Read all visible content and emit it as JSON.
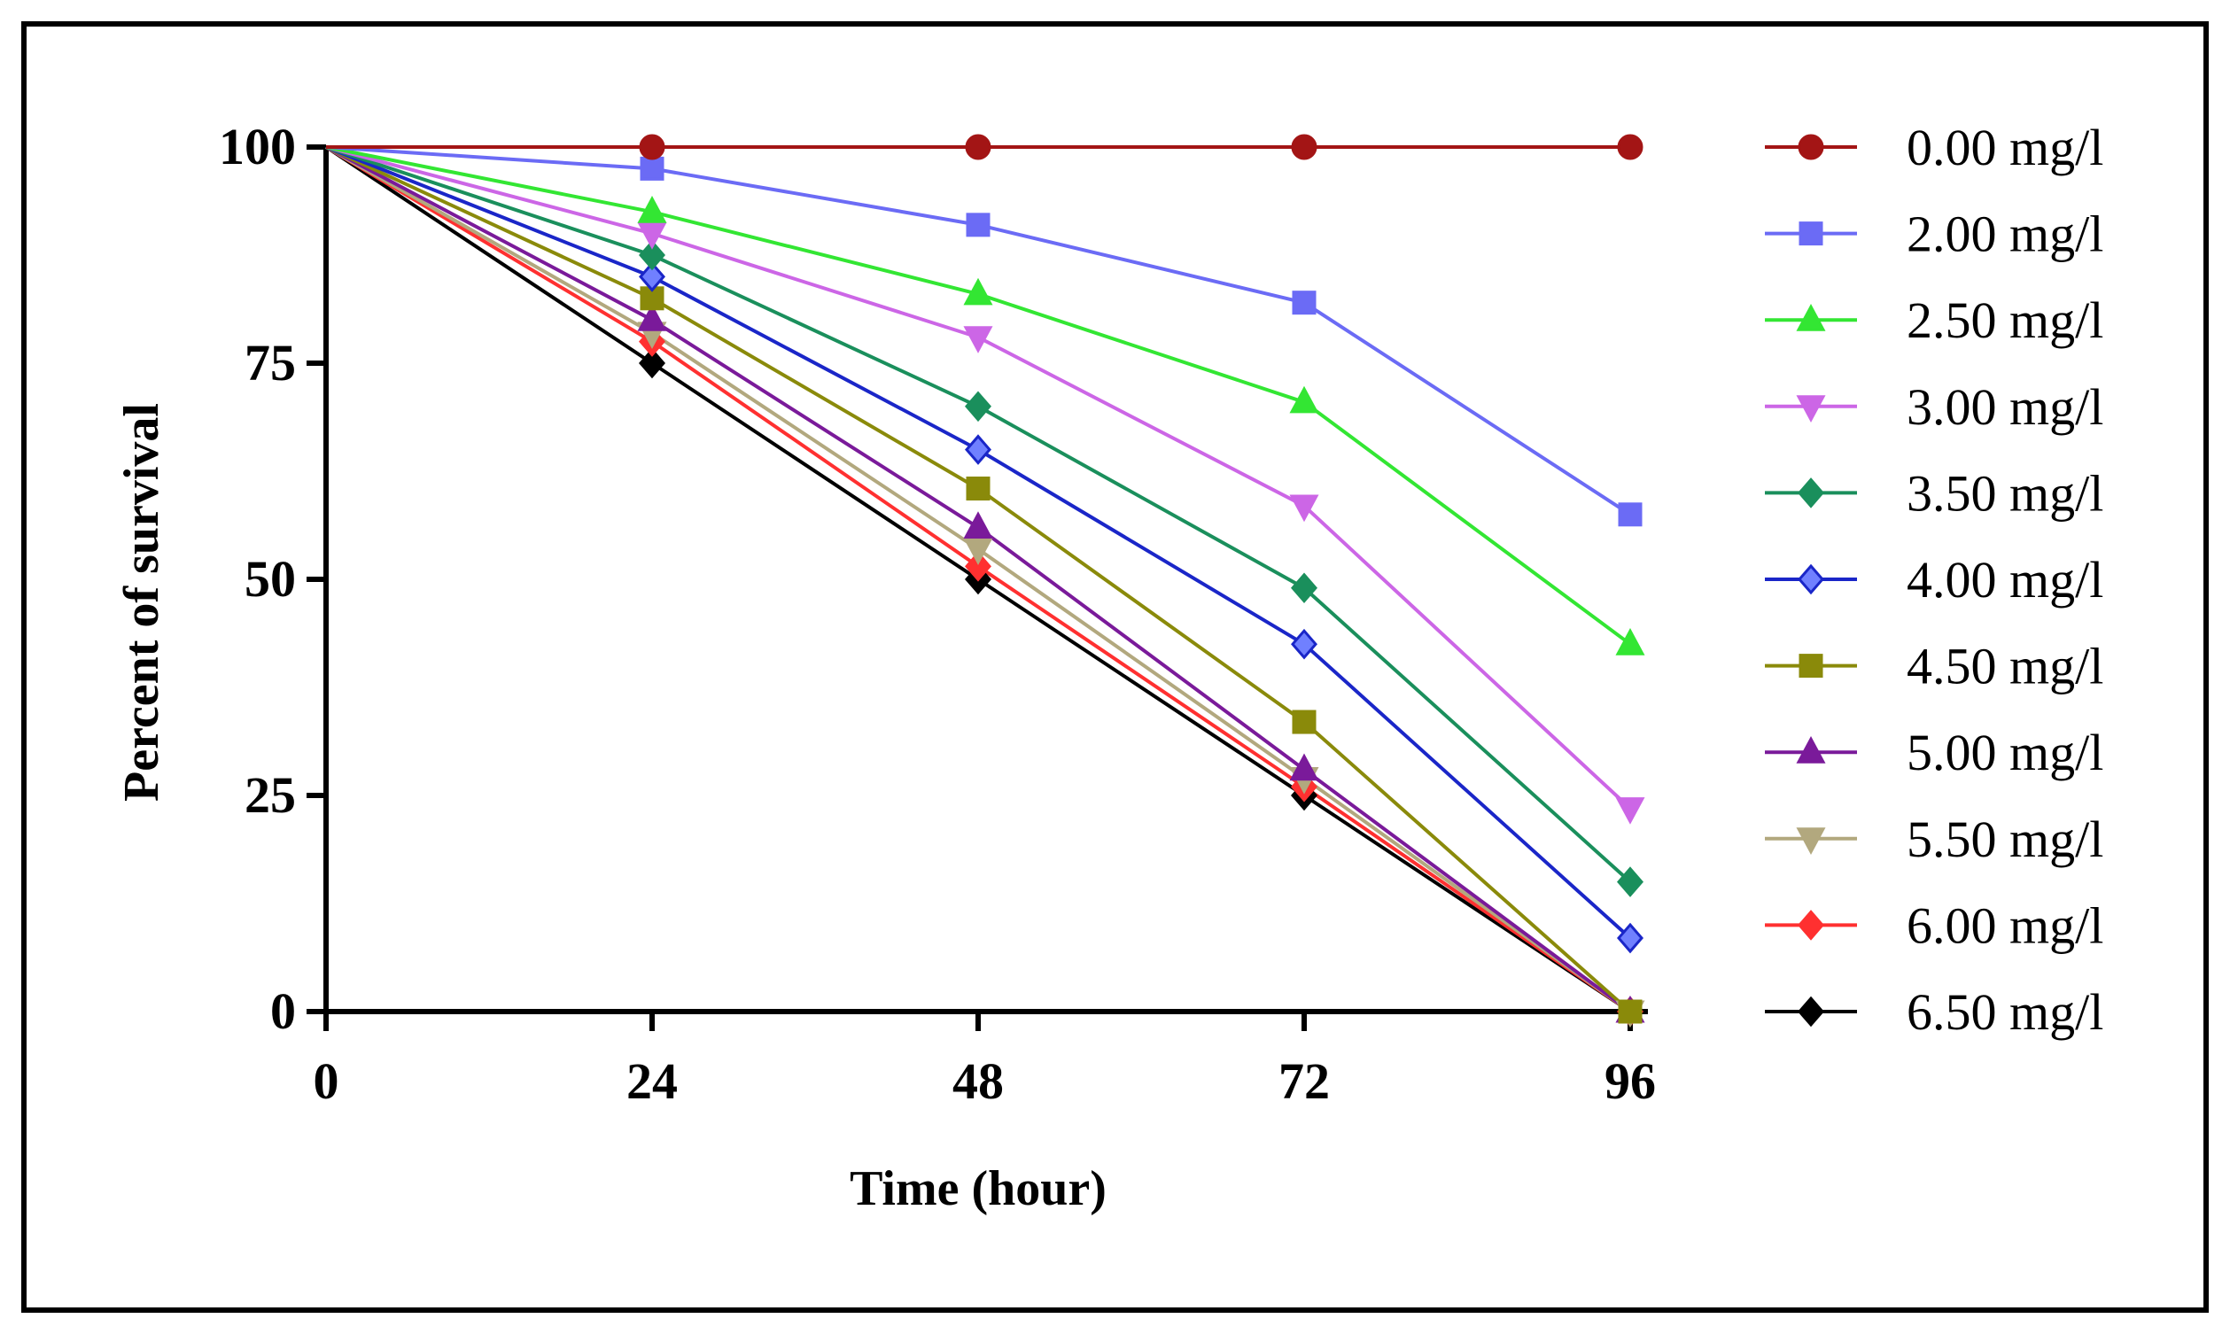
{
  "chart_data": {
    "type": "line",
    "title": "",
    "xlabel": "Time (hour)",
    "ylabel": "Percent of survival",
    "x": [
      0,
      24,
      48,
      72,
      96
    ],
    "xticks": [
      "0",
      "24",
      "48",
      "72",
      "96"
    ],
    "yticks": [
      "0",
      "25",
      "50",
      "75",
      "100"
    ],
    "xlim": [
      0,
      96
    ],
    "ylim": [
      0,
      100
    ],
    "grid": false,
    "legend_position": "right",
    "series": [
      {
        "name": "0.00 mg/l",
        "values": [
          100,
          100,
          100,
          100,
          100
        ],
        "color": "#a31515",
        "marker": "circle",
        "marker_fill": "#a31515"
      },
      {
        "name": "2.00 mg/l",
        "values": [
          100,
          97.5,
          91,
          82,
          57.5
        ],
        "color": "#6b6bf5",
        "marker": "square",
        "marker_fill": "#6b6bf5"
      },
      {
        "name": "2.50 mg/l",
        "values": [
          100,
          92.5,
          83,
          70.5,
          42.5
        ],
        "color": "#33e633",
        "marker": "triangle-up",
        "marker_fill": "#33e633"
      },
      {
        "name": "3.00 mg/l",
        "values": [
          100,
          90,
          78,
          58.5,
          23.5
        ],
        "color": "#cc66e6",
        "marker": "triangle-down",
        "marker_fill": "#cc66e6"
      },
      {
        "name": "3.50 mg/l",
        "values": [
          100,
          87.5,
          70,
          49,
          15
        ],
        "color": "#1a8f5c",
        "marker": "diamond",
        "marker_fill": "#1a8f5c"
      },
      {
        "name": "4.00 mg/l",
        "values": [
          100,
          85,
          65,
          42.5,
          8.5
        ],
        "color": "#1a26c8",
        "marker": "diamond",
        "marker_fill": "#7080ff"
      },
      {
        "name": "4.50 mg/l",
        "values": [
          100,
          82.5,
          60.5,
          33.5,
          0
        ],
        "color": "#8a8a0a",
        "marker": "square",
        "marker_fill": "#8a8a0a"
      },
      {
        "name": "5.00 mg/l",
        "values": [
          100,
          80,
          56,
          28,
          0
        ],
        "color": "#7a1a9a",
        "marker": "triangle-up",
        "marker_fill": "#7a1a9a"
      },
      {
        "name": "5.50 mg/l",
        "values": [
          100,
          78.5,
          53.5,
          27,
          0
        ],
        "color": "#b2a87e",
        "marker": "triangle-down",
        "marker_fill": "#b2a87e"
      },
      {
        "name": "6.00 mg/l",
        "values": [
          100,
          77.5,
          51.5,
          26,
          0
        ],
        "color": "#ff3030",
        "marker": "diamond",
        "marker_fill": "#ff3030"
      },
      {
        "name": "6.50 mg/l",
        "values": [
          100,
          75,
          50,
          25,
          0
        ],
        "color": "#000000",
        "marker": "diamond",
        "marker_fill": "#000000"
      }
    ]
  }
}
